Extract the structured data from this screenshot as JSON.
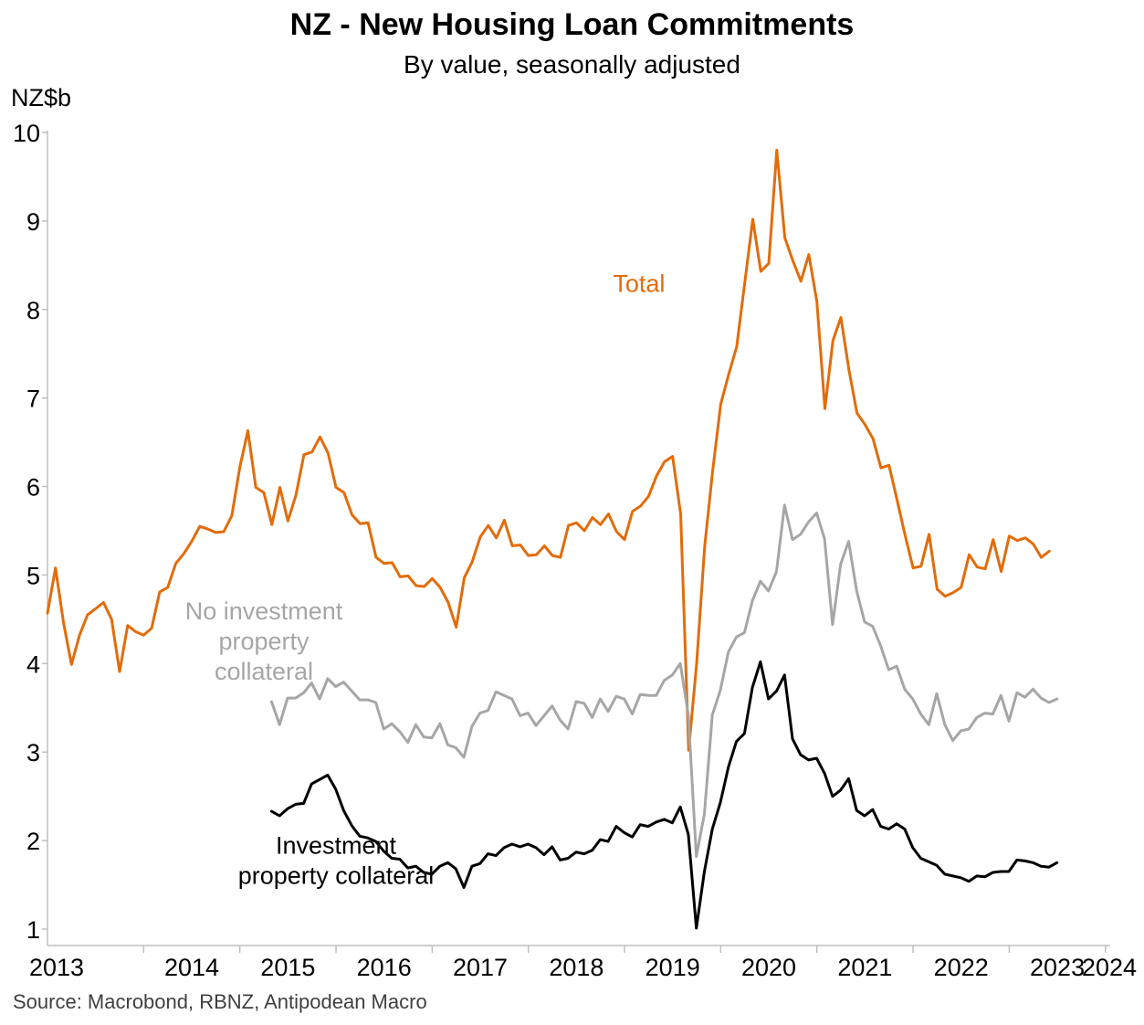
{
  "title": "NZ - New Housing Loan Commitments",
  "subtitle": "By value, seasonally adjusted",
  "source": "Source: Macrobond, RBNZ, Antipodean Macro",
  "chart_data": {
    "type": "line",
    "ylabel": "NZ$b",
    "ylim": [
      1,
      10
    ],
    "yticks": [
      1,
      2,
      3,
      4,
      5,
      6,
      7,
      8,
      9,
      10
    ],
    "xlim": [
      2013.0,
      2024.05
    ],
    "xticks": [
      "2013",
      "2014",
      "2015",
      "2016",
      "2017",
      "2018",
      "2019",
      "2020",
      "2021",
      "2022",
      "2023",
      "2024"
    ],
    "grid": false,
    "legend": "inline labels",
    "series": [
      {
        "name": "Total",
        "color": "#E36C0A",
        "label_x": 2019.15,
        "label_y": 8.2,
        "x_start": 2013.0,
        "values": [
          4.57,
          5.08,
          4.46,
          3.99,
          4.32,
          4.55,
          4.62,
          4.69,
          4.5,
          3.91,
          4.43,
          4.36,
          4.32,
          4.4,
          4.81,
          4.86,
          5.13,
          5.24,
          5.38,
          5.55,
          5.52,
          5.48,
          5.49,
          5.67,
          6.22,
          6.63,
          5.99,
          5.93,
          5.57,
          5.99,
          5.61,
          5.9,
          6.36,
          6.39,
          6.56,
          6.38,
          5.99,
          5.93,
          5.68,
          5.58,
          5.59,
          5.2,
          5.13,
          5.14,
          4.98,
          4.99,
          4.88,
          4.87,
          4.96,
          4.86,
          4.69,
          4.41,
          4.97,
          5.15,
          5.43,
          5.56,
          5.42,
          5.62,
          5.33,
          5.34,
          5.22,
          5.23,
          5.33,
          5.22,
          5.2,
          5.56,
          5.59,
          5.5,
          5.65,
          5.57,
          5.69,
          5.49,
          5.4,
          5.72,
          5.78,
          5.89,
          6.12,
          6.28,
          6.34,
          5.69,
          3.02,
          4.0,
          5.32,
          6.18,
          6.93,
          7.27,
          7.58,
          8.3,
          9.02,
          8.43,
          8.52,
          9.8,
          8.81,
          8.55,
          8.32,
          8.62,
          8.09,
          6.88,
          7.65,
          7.91,
          7.32,
          6.83,
          6.7,
          6.54,
          6.21,
          6.24,
          5.85,
          5.45,
          5.08,
          5.1,
          5.46,
          4.84,
          4.76,
          4.8,
          4.86,
          5.23,
          5.09,
          5.07,
          5.4,
          5.04,
          5.44,
          5.39,
          5.42,
          5.35,
          5.2,
          5.27
        ]
      },
      {
        "name": "No investment property collateral",
        "label": [
          "No investment",
          "property",
          "collateral"
        ],
        "color": "#A6A6A6",
        "label_x": 2015.25,
        "label_y": 4.5,
        "x_start": 2015.33,
        "values": [
          3.57,
          3.31,
          3.61,
          3.61,
          3.67,
          3.78,
          3.6,
          3.83,
          3.74,
          3.79,
          3.69,
          3.59,
          3.59,
          3.56,
          3.26,
          3.32,
          3.23,
          3.11,
          3.31,
          3.17,
          3.16,
          3.32,
          3.08,
          3.05,
          2.94,
          3.29,
          3.44,
          3.47,
          3.68,
          3.64,
          3.6,
          3.41,
          3.44,
          3.3,
          3.41,
          3.52,
          3.36,
          3.26,
          3.57,
          3.55,
          3.39,
          3.6,
          3.46,
          3.63,
          3.6,
          3.43,
          3.65,
          3.64,
          3.64,
          3.81,
          3.87,
          4.0,
          3.42,
          1.82,
          2.3,
          3.42,
          3.7,
          4.13,
          4.3,
          4.35,
          4.71,
          4.93,
          4.82,
          5.04,
          5.79,
          5.4,
          5.46,
          5.6,
          5.7,
          5.41,
          4.44,
          5.12,
          5.38,
          4.82,
          4.47,
          4.42,
          4.2,
          3.93,
          3.97,
          3.71,
          3.6,
          3.43,
          3.31,
          3.66,
          3.31,
          3.13,
          3.24,
          3.26,
          3.39,
          3.44,
          3.43,
          3.64,
          3.35,
          3.67,
          3.62,
          3.71,
          3.61,
          3.56,
          3.6
        ]
      },
      {
        "name": "Investment property collateral",
        "label": [
          "Investment",
          "property collateral"
        ],
        "color": "#000000",
        "label_x": 2016.0,
        "label_y": 1.85,
        "x_start": 2015.33,
        "values": [
          2.33,
          2.28,
          2.36,
          2.41,
          2.42,
          2.64,
          2.69,
          2.74,
          2.58,
          2.34,
          2.17,
          2.05,
          2.03,
          1.99,
          1.88,
          1.8,
          1.79,
          1.69,
          1.71,
          1.64,
          1.62,
          1.71,
          1.75,
          1.68,
          1.47,
          1.71,
          1.74,
          1.85,
          1.83,
          1.92,
          1.96,
          1.93,
          1.96,
          1.92,
          1.84,
          1.93,
          1.78,
          1.8,
          1.87,
          1.85,
          1.89,
          2.01,
          1.99,
          2.16,
          2.09,
          2.04,
          2.18,
          2.16,
          2.21,
          2.24,
          2.2,
          2.38,
          2.07,
          1.01,
          1.65,
          2.13,
          2.43,
          2.83,
          3.12,
          3.21,
          3.73,
          4.02,
          3.6,
          3.69,
          3.87,
          3.15,
          2.97,
          2.91,
          2.93,
          2.76,
          2.5,
          2.57,
          2.7,
          2.34,
          2.28,
          2.35,
          2.16,
          2.13,
          2.19,
          2.13,
          1.92,
          1.8,
          1.76,
          1.72,
          1.62,
          1.6,
          1.58,
          1.54,
          1.6,
          1.59,
          1.64,
          1.65,
          1.65,
          1.78,
          1.77,
          1.75,
          1.71,
          1.7,
          1.75
        ]
      }
    ]
  }
}
